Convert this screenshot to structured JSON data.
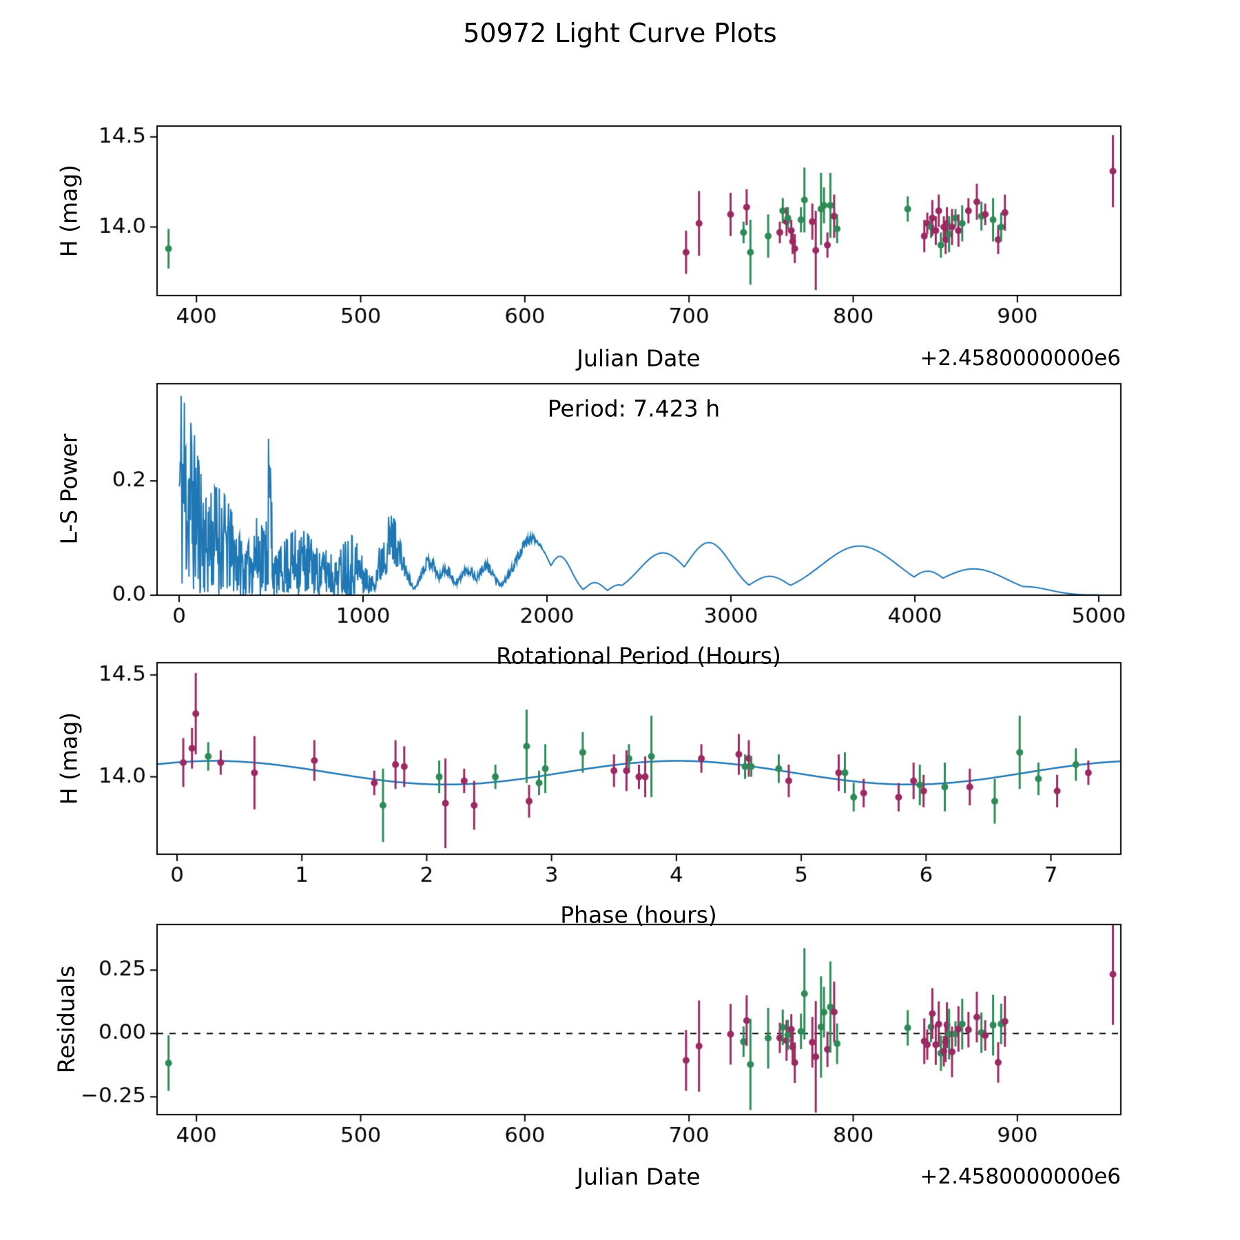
{
  "title": "50972 Light Curve Plots",
  "chart_data": {
    "type": "scatter",
    "figure_kind": "asteroid light curve multi-panel figure",
    "panels": [
      {
        "id": "jd-vs-mag",
        "type": "scatter",
        "xlabel": "Julian Date",
        "ylabel": "H (mag)",
        "x_offset_label": "+2.4580000000e6",
        "xlim": [
          376,
          963
        ],
        "ylim": [
          13.62,
          14.56
        ],
        "xticks": [
          400,
          500,
          600,
          700,
          800,
          900
        ],
        "xtick_labels": [
          "400",
          "500",
          "600",
          "700",
          "800",
          "900"
        ],
        "yticks": [
          14.0,
          14.5
        ],
        "ytick_labels": [
          "14.0",
          "14.5"
        ]
      },
      {
        "id": "periodogram",
        "type": "line",
        "xlabel": "Rotational Period (Hours)",
        "ylabel": "L-S Power",
        "annotation": "Period: 7.423 h",
        "line_color": "#1f77b4",
        "xlim": [
          -120,
          5120
        ],
        "ylim": [
          0,
          0.37
        ],
        "xticks": [
          0,
          1000,
          2000,
          3000,
          4000,
          5000
        ],
        "xtick_labels": [
          "0",
          "1000",
          "2000",
          "3000",
          "4000",
          "5000"
        ],
        "yticks": [
          0.0,
          0.2
        ],
        "ytick_labels": [
          "0.0",
          "0.2"
        ]
      },
      {
        "id": "phase-folded",
        "type": "scatter-with-fit",
        "xlabel": "Phase (hours)",
        "ylabel": "H (mag)",
        "xlim": [
          -0.16,
          7.56
        ],
        "ylim": [
          13.62,
          14.56
        ],
        "xticks": [
          0,
          1,
          2,
          3,
          4,
          5,
          6,
          7
        ],
        "xtick_labels": [
          "0",
          "1",
          "2",
          "3",
          "4",
          "5",
          "6",
          "7"
        ],
        "yticks": [
          14.0,
          14.5
        ],
        "ytick_labels": [
          "14.0",
          "14.5"
        ]
      },
      {
        "id": "residuals",
        "type": "scatter",
        "xlabel": "Julian Date",
        "ylabel": "Residuals",
        "x_offset_label": "+2.4580000000e6",
        "hline": 0,
        "xlim": [
          376,
          963
        ],
        "ylim": [
          -0.32,
          0.43
        ],
        "xticks": [
          400,
          500,
          600,
          700,
          800,
          900
        ],
        "xtick_labels": [
          "400",
          "500",
          "600",
          "700",
          "800",
          "900"
        ],
        "yticks": [
          -0.25,
          0.0,
          0.25
        ],
        "ytick_labels": [
          "−0.25",
          "0.00",
          "0.25"
        ]
      }
    ],
    "series_colors": {
      "g": "#2e8b57",
      "p": "#9c2963"
    },
    "fit": {
      "period_hours": 7.423,
      "mean_mag": 14.02,
      "amplitude_mag": 0.058,
      "phase_offset_hours": 0.3,
      "curve_color": "#1f77b4"
    },
    "observations": {
      "columns": [
        "jd_minus_2458000",
        "phase_hours",
        "h_mag",
        "h_mag_err",
        "series"
      ],
      "rows": [
        [
          383.0,
          6.55,
          13.88,
          0.11,
          "g"
        ],
        [
          698.2,
          2.38,
          13.86,
          0.12,
          "p"
        ],
        [
          706.1,
          0.62,
          14.02,
          0.18,
          "p"
        ],
        [
          725.3,
          0.05,
          14.07,
          0.12,
          "p"
        ],
        [
          733.2,
          2.9,
          13.97,
          0.06,
          "g"
        ],
        [
          735.1,
          4.5,
          14.11,
          0.1,
          "p"
        ],
        [
          737.4,
          1.65,
          13.86,
          0.18,
          "g"
        ],
        [
          748.2,
          6.15,
          13.95,
          0.12,
          "g"
        ],
        [
          755.3,
          1.58,
          13.97,
          0.06,
          "p"
        ],
        [
          757.1,
          3.62,
          14.09,
          0.07,
          "g"
        ],
        [
          759.4,
          3.5,
          14.03,
          0.08,
          "p"
        ],
        [
          760.2,
          4.55,
          14.05,
          0.06,
          "g"
        ],
        [
          762.3,
          2.3,
          13.98,
          0.06,
          "p"
        ],
        [
          763.1,
          5.5,
          13.92,
          0.07,
          "p"
        ],
        [
          764.4,
          2.82,
          13.88,
          0.08,
          "p"
        ],
        [
          768.2,
          4.82,
          14.04,
          0.07,
          "g"
        ],
        [
          770.3,
          2.8,
          14.15,
          0.18,
          "g"
        ],
        [
          775.1,
          3.6,
          14.03,
          0.1,
          "p"
        ],
        [
          777.2,
          2.15,
          13.87,
          0.22,
          "p"
        ],
        [
          780.4,
          3.8,
          14.1,
          0.2,
          "g"
        ],
        [
          782.2,
          3.25,
          14.12,
          0.1,
          "g"
        ],
        [
          784.3,
          5.78,
          13.9,
          0.07,
          "p"
        ],
        [
          786.1,
          6.75,
          14.12,
          0.18,
          "g"
        ],
        [
          788.4,
          1.75,
          14.06,
          0.12,
          "p"
        ],
        [
          790.2,
          6.9,
          13.99,
          0.08,
          "g"
        ],
        [
          833.2,
          0.25,
          14.1,
          0.07,
          "g"
        ],
        [
          843.3,
          6.35,
          13.95,
          0.09,
          "p"
        ],
        [
          845.1,
          7.3,
          14.02,
          0.06,
          "p"
        ],
        [
          847.4,
          2.55,
          14.0,
          0.06,
          "g"
        ],
        [
          848.2,
          1.82,
          14.05,
          0.1,
          "p"
        ],
        [
          850.3,
          4.9,
          13.98,
          0.08,
          "p"
        ],
        [
          852.1,
          4.58,
          14.09,
          0.09,
          "p"
        ],
        [
          853.4,
          5.42,
          13.9,
          0.07,
          "g"
        ],
        [
          855.2,
          3.7,
          14.0,
          0.06,
          "p"
        ],
        [
          856.3,
          5.98,
          13.93,
          0.08,
          "p"
        ],
        [
          857.1,
          5.3,
          14.02,
          0.09,
          "p"
        ],
        [
          858.4,
          5.95,
          13.96,
          0.1,
          "g"
        ],
        [
          860.2,
          3.75,
          14.0,
          0.1,
          "p"
        ],
        [
          862.3,
          4.6,
          14.05,
          0.05,
          "g"
        ],
        [
          864.1,
          5.9,
          13.98,
          0.09,
          "p"
        ],
        [
          866.4,
          5.35,
          14.02,
          0.1,
          "g"
        ],
        [
          870.2,
          4.2,
          14.09,
          0.07,
          "p"
        ],
        [
          875.3,
          0.12,
          14.14,
          0.1,
          "p"
        ],
        [
          878.1,
          7.2,
          14.06,
          0.08,
          "g"
        ],
        [
          880.4,
          0.35,
          14.07,
          0.06,
          "p"
        ],
        [
          885.2,
          2.95,
          14.04,
          0.12,
          "g"
        ],
        [
          888.3,
          7.05,
          13.93,
          0.08,
          "p"
        ],
        [
          890.1,
          2.1,
          14.0,
          0.08,
          "g"
        ],
        [
          892.4,
          1.1,
          14.08,
          0.1,
          "p"
        ],
        [
          958.2,
          0.15,
          14.31,
          0.2,
          "p"
        ]
      ]
    },
    "periodogram": {
      "seed": 11,
      "sample_step": 2.5,
      "noise": {
        "full_until": 1000,
        "fade_until": 1300,
        "fade_to": 0.3,
        "off_from": 1800,
        "off_until": 2000
      },
      "bumps": [
        [
          0,
          120,
          0.34
        ],
        [
          200,
          120,
          0.18
        ],
        [
          430,
          60,
          0.13
        ],
        [
          490,
          15,
          0.27
        ],
        [
          650,
          120,
          0.11
        ],
        [
          800,
          60,
          0.075
        ],
        [
          930,
          70,
          0.1
        ],
        [
          1150,
          60,
          0.135
        ],
        [
          1360,
          45,
          0.068
        ],
        [
          1450,
          40,
          0.052
        ],
        [
          1570,
          50,
          0.05
        ],
        [
          1670,
          50,
          0.057
        ],
        [
          1915,
          90,
          0.104
        ],
        [
          2070,
          65,
          0.068
        ],
        [
          2260,
          50,
          0.022
        ],
        [
          2390,
          50,
          0.018
        ],
        [
          2630,
          130,
          0.074
        ],
        [
          2880,
          120,
          0.092
        ],
        [
          3210,
          100,
          0.033
        ],
        [
          3700,
          210,
          0.086
        ],
        [
          4070,
          100,
          0.042
        ],
        [
          4320,
          180,
          0.046
        ],
        [
          4600,
          130,
          0.015
        ]
      ]
    }
  }
}
